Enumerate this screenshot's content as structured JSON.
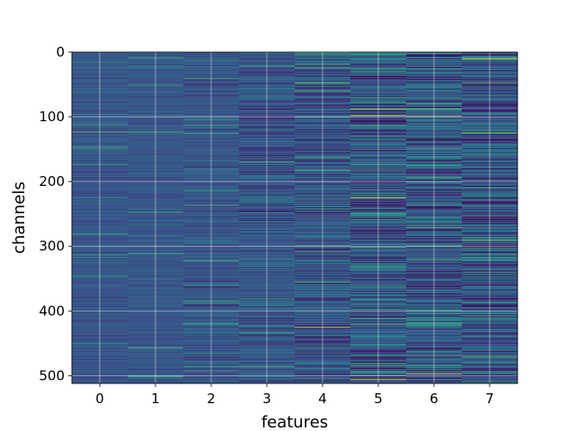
{
  "chart_data": {
    "type": "heatmap",
    "title": "",
    "xlabel": "features",
    "ylabel": "channels",
    "x_categories": [
      "0",
      "1",
      "2",
      "3",
      "4",
      "5",
      "6",
      "7"
    ],
    "y_ticks": [
      0,
      100,
      200,
      300,
      400,
      500
    ],
    "ylim": [
      0,
      512
    ],
    "y_inverted": true,
    "n_rows": 512,
    "grid": true,
    "colormap": "viridis",
    "base_color": "#3b528b",
    "column_variability": [
      0.12,
      0.1,
      0.16,
      0.22,
      0.3,
      0.38,
      0.36,
      0.42
    ],
    "highlight_rows": [
      {
        "feature": 0,
        "channel": 123,
        "value": 0.78
      },
      {
        "feature": 0,
        "channel": 281,
        "value": 0.62
      },
      {
        "feature": 1,
        "channel": 123,
        "value": 0.74
      },
      {
        "feature": 1,
        "channel": 500,
        "value": 0.6
      },
      {
        "feature": 2,
        "channel": 125,
        "value": 0.62
      },
      {
        "feature": 2,
        "channel": 420,
        "value": 0.58
      },
      {
        "feature": 3,
        "channel": 380,
        "value": 0.62
      },
      {
        "feature": 4,
        "channel": 0,
        "value": 0.7
      },
      {
        "feature": 4,
        "channel": 23,
        "value": 0.72
      },
      {
        "feature": 4,
        "channel": 182,
        "value": 0.72
      },
      {
        "feature": 4,
        "channel": 355,
        "value": 0.7
      },
      {
        "feature": 4,
        "channel": 425,
        "value": 0.9
      },
      {
        "feature": 5,
        "channel": 88,
        "value": 0.9
      },
      {
        "feature": 5,
        "channel": 97,
        "value": 0.92
      },
      {
        "feature": 5,
        "channel": 225,
        "value": 0.95
      },
      {
        "feature": 5,
        "channel": 420,
        "value": 0.72
      },
      {
        "feature": 5,
        "channel": 505,
        "value": 0.92
      },
      {
        "feature": 6,
        "channel": 98,
        "value": 0.85
      },
      {
        "feature": 6,
        "channel": 148,
        "value": 0.72
      },
      {
        "feature": 6,
        "channel": 193,
        "value": 0.7
      },
      {
        "feature": 6,
        "channel": 320,
        "value": 0.72
      },
      {
        "feature": 6,
        "channel": 497,
        "value": 0.96
      },
      {
        "feature": 7,
        "channel": 10,
        "value": 0.96
      },
      {
        "feature": 7,
        "channel": 47,
        "value": 0.76
      },
      {
        "feature": 7,
        "channel": 125,
        "value": 0.86
      },
      {
        "feature": 7,
        "channel": 253,
        "value": 0.74
      },
      {
        "feature": 7,
        "channel": 290,
        "value": 0.78
      },
      {
        "feature": 7,
        "channel": 470,
        "value": 0.72
      }
    ]
  }
}
